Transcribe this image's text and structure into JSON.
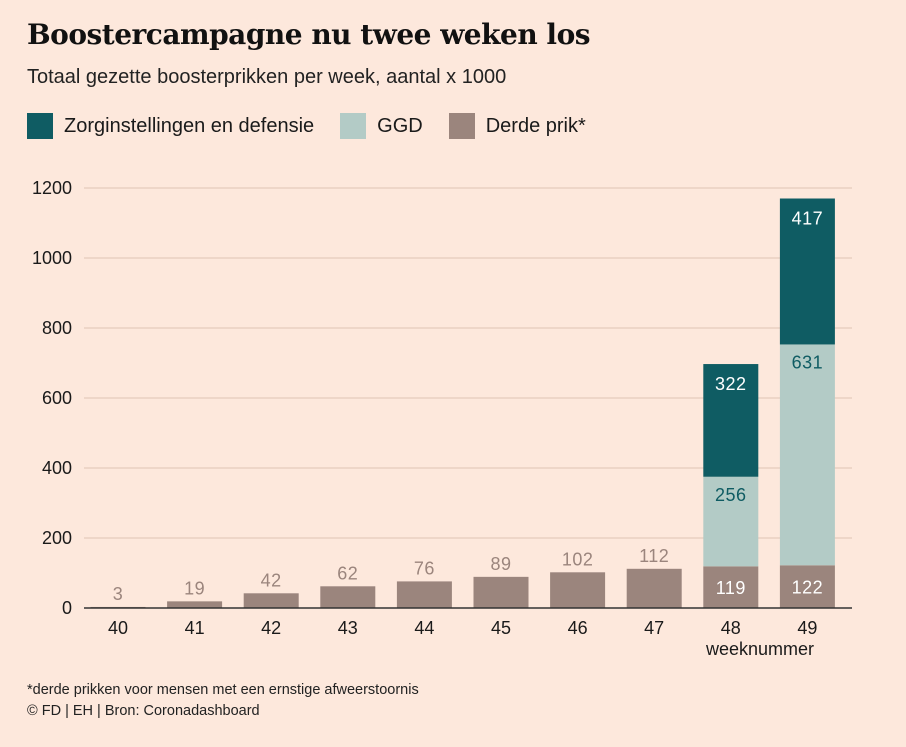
{
  "title": "Boostercampagne nu twee weken los",
  "subtitle": "Totaal gezette boosterprikken per week, aantal x 1000",
  "legend": [
    {
      "label": "Zorginstellingen en defensie",
      "color": "#0f5c63"
    },
    {
      "label": "GGD",
      "color": "#b3cbc6"
    },
    {
      "label": "Derde prik*",
      "color": "#9b857d"
    }
  ],
  "footnote": "*derde prikken voor mensen met een ernstige afweerstoornis",
  "credit": "© FD | EH | Bron: Coronadashboard",
  "colors": {
    "background": "#fde8dc",
    "grid": "#e9cfc2",
    "axis": "#333333",
    "label_on_light": "#0f5c63",
    "label_outside": "#9b857d",
    "label_inside": "#ffffff"
  },
  "chart_data": {
    "type": "bar",
    "stacked": true,
    "categories": [
      "40",
      "41",
      "42",
      "43",
      "44",
      "45",
      "46",
      "47",
      "48",
      "49"
    ],
    "series": [
      {
        "name": "Derde prik*",
        "values": [
          3,
          19,
          42,
          62,
          76,
          89,
          102,
          112,
          119,
          122
        ]
      },
      {
        "name": "GGD",
        "values": [
          0,
          0,
          0,
          0,
          0,
          0,
          0,
          0,
          256,
          631
        ]
      },
      {
        "name": "Zorginstellingen en defensie",
        "values": [
          0,
          0,
          0,
          0,
          0,
          0,
          0,
          0,
          322,
          417
        ]
      }
    ],
    "y_ticks": [
      0,
      200,
      400,
      600,
      800,
      1000,
      1200
    ],
    "ylim": [
      0,
      1200
    ],
    "xlabel": "weeknummer",
    "ylabel": "",
    "grid": true
  }
}
